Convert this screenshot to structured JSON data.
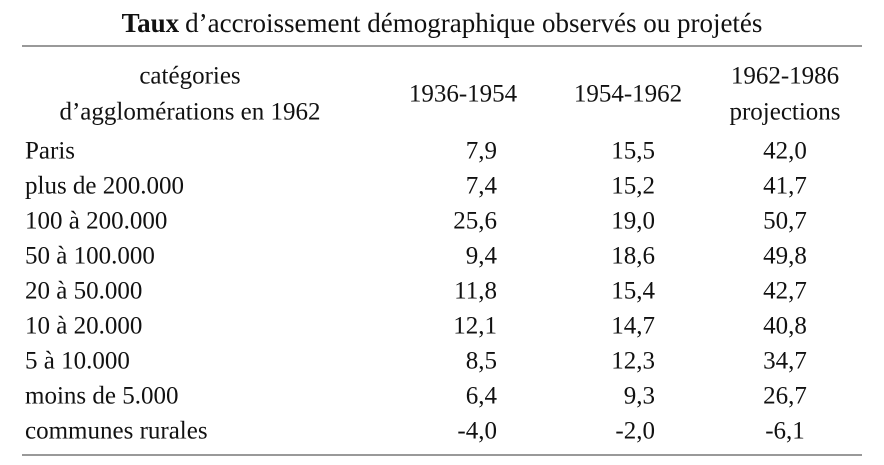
{
  "title": {
    "bold": "Taux",
    "rest": "d’accroissement démographique observés ou projetés"
  },
  "table": {
    "header": [
      [
        "catégories",
        "d’agglomérations en 1962"
      ],
      [
        "1936-1954"
      ],
      [
        "1954-1962"
      ],
      [
        "1962-1986",
        "projections"
      ]
    ],
    "rows": [
      [
        "Paris",
        "7,9",
        "15,5",
        "42,0"
      ],
      [
        "plus de 200.000",
        "7,4",
        "15,2",
        "41,7"
      ],
      [
        "100 à 200.000",
        "25,6",
        "19,0",
        "50,7"
      ],
      [
        "50 à 100.000",
        "9,4",
        "18,6",
        "49,8"
      ],
      [
        "20 à 50.000",
        "11,8",
        "15,4",
        "42,7"
      ],
      [
        "10 à 20.000",
        "12,1",
        "14,7",
        "40,8"
      ],
      [
        "5 à 10.000",
        "8,5",
        "12,3",
        "34,7"
      ],
      [
        "moins de 5.000",
        "6,4",
        "9,3",
        "26,7"
      ],
      [
        "communes rurales",
        "-4,0",
        "-2,0",
        "-6,1"
      ]
    ]
  }
}
